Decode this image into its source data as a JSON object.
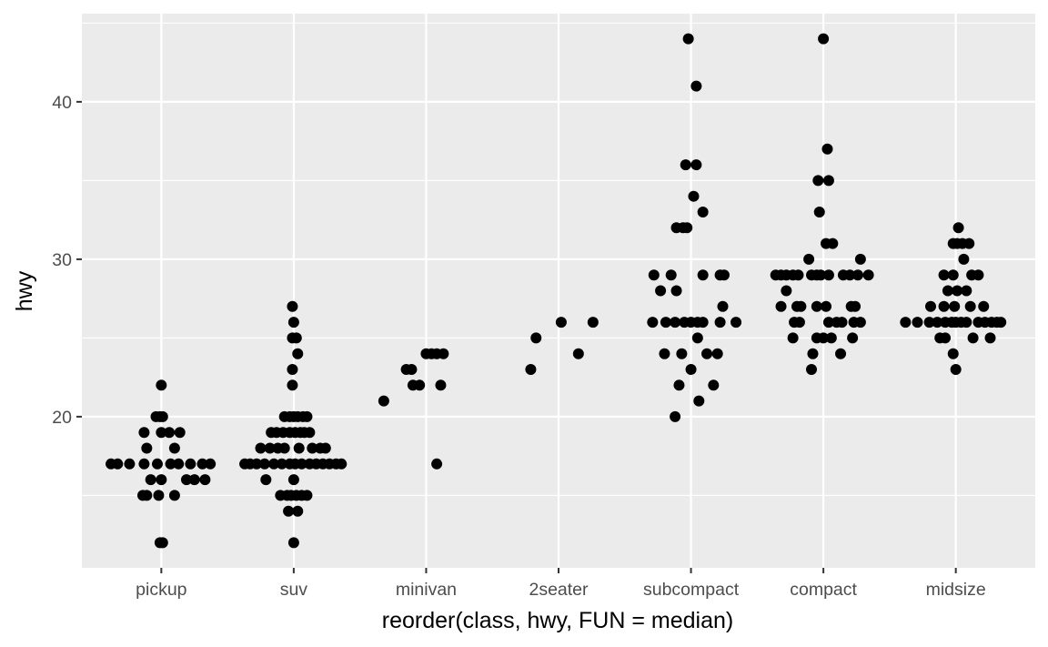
{
  "chart_data": {
    "type": "scatter",
    "subtype": "jittered-strip",
    "title": "",
    "xlabel": "reorder(class, hwy, FUN = median)",
    "ylabel": "hwy",
    "categories": [
      "pickup",
      "suv",
      "minivan",
      "2seater",
      "subcompact",
      "compact",
      "midsize"
    ],
    "ylim": [
      10.4,
      45.6
    ],
    "yticks": [
      20,
      30,
      40
    ],
    "grid": true,
    "legend": "none",
    "colors": {
      "panel": "#ebebeb",
      "grid": "#ffffff",
      "point": "#000000",
      "text": "#4d4d4d"
    },
    "points": [
      {
        "category": "pickup",
        "offset": -0.38,
        "y": 17
      },
      {
        "category": "pickup",
        "offset": -0.33,
        "y": 17
      },
      {
        "category": "pickup",
        "offset": -0.24,
        "y": 17
      },
      {
        "category": "pickup",
        "offset": -0.13,
        "y": 17
      },
      {
        "category": "pickup",
        "offset": -0.03,
        "y": 17
      },
      {
        "category": "pickup",
        "offset": 0.07,
        "y": 17
      },
      {
        "category": "pickup",
        "offset": 0.13,
        "y": 17
      },
      {
        "category": "pickup",
        "offset": 0.22,
        "y": 17
      },
      {
        "category": "pickup",
        "offset": 0.31,
        "y": 17
      },
      {
        "category": "pickup",
        "offset": 0.37,
        "y": 17
      },
      {
        "category": "pickup",
        "offset": -0.11,
        "y": 18
      },
      {
        "category": "pickup",
        "offset": 0.1,
        "y": 18
      },
      {
        "category": "pickup",
        "offset": -0.13,
        "y": 19
      },
      {
        "category": "pickup",
        "offset": 0.0,
        "y": 19
      },
      {
        "category": "pickup",
        "offset": 0.06,
        "y": 19
      },
      {
        "category": "pickup",
        "offset": 0.14,
        "y": 19
      },
      {
        "category": "pickup",
        "offset": -0.04,
        "y": 20
      },
      {
        "category": "pickup",
        "offset": -0.01,
        "y": 20
      },
      {
        "category": "pickup",
        "offset": 0.01,
        "y": 20
      },
      {
        "category": "pickup",
        "offset": 0.0,
        "y": 22
      },
      {
        "category": "pickup",
        "offset": -0.08,
        "y": 16
      },
      {
        "category": "pickup",
        "offset": 0.0,
        "y": 16
      },
      {
        "category": "pickup",
        "offset": 0.19,
        "y": 16
      },
      {
        "category": "pickup",
        "offset": 0.25,
        "y": 16
      },
      {
        "category": "pickup",
        "offset": 0.33,
        "y": 16
      },
      {
        "category": "pickup",
        "offset": -0.14,
        "y": 15
      },
      {
        "category": "pickup",
        "offset": -0.11,
        "y": 15
      },
      {
        "category": "pickup",
        "offset": -0.02,
        "y": 15
      },
      {
        "category": "pickup",
        "offset": 0.1,
        "y": 15
      },
      {
        "category": "pickup",
        "offset": -0.01,
        "y": 12
      },
      {
        "category": "pickup",
        "offset": 0.01,
        "y": 12
      },
      {
        "category": "suv",
        "offset": -0.37,
        "y": 17
      },
      {
        "category": "suv",
        "offset": -0.33,
        "y": 17
      },
      {
        "category": "suv",
        "offset": -0.28,
        "y": 17
      },
      {
        "category": "suv",
        "offset": -0.22,
        "y": 17
      },
      {
        "category": "suv",
        "offset": -0.15,
        "y": 17
      },
      {
        "category": "suv",
        "offset": -0.09,
        "y": 17
      },
      {
        "category": "suv",
        "offset": -0.03,
        "y": 17
      },
      {
        "category": "suv",
        "offset": 0.01,
        "y": 17
      },
      {
        "category": "suv",
        "offset": 0.06,
        "y": 17
      },
      {
        "category": "suv",
        "offset": 0.12,
        "y": 17
      },
      {
        "category": "suv",
        "offset": 0.17,
        "y": 17
      },
      {
        "category": "suv",
        "offset": 0.22,
        "y": 17
      },
      {
        "category": "suv",
        "offset": 0.27,
        "y": 17
      },
      {
        "category": "suv",
        "offset": 0.32,
        "y": 17
      },
      {
        "category": "suv",
        "offset": 0.36,
        "y": 17
      },
      {
        "category": "suv",
        "offset": -0.25,
        "y": 18
      },
      {
        "category": "suv",
        "offset": -0.18,
        "y": 18
      },
      {
        "category": "suv",
        "offset": -0.12,
        "y": 18
      },
      {
        "category": "suv",
        "offset": -0.07,
        "y": 18
      },
      {
        "category": "suv",
        "offset": 0.04,
        "y": 18
      },
      {
        "category": "suv",
        "offset": 0.14,
        "y": 18
      },
      {
        "category": "suv",
        "offset": 0.2,
        "y": 18
      },
      {
        "category": "suv",
        "offset": 0.24,
        "y": 18
      },
      {
        "category": "suv",
        "offset": -0.17,
        "y": 19
      },
      {
        "category": "suv",
        "offset": -0.13,
        "y": 19
      },
      {
        "category": "suv",
        "offset": -0.08,
        "y": 19
      },
      {
        "category": "suv",
        "offset": -0.03,
        "y": 19
      },
      {
        "category": "suv",
        "offset": 0.01,
        "y": 19
      },
      {
        "category": "suv",
        "offset": 0.05,
        "y": 19
      },
      {
        "category": "suv",
        "offset": 0.08,
        "y": 19
      },
      {
        "category": "suv",
        "offset": 0.12,
        "y": 19
      },
      {
        "category": "suv",
        "offset": -0.07,
        "y": 20
      },
      {
        "category": "suv",
        "offset": -0.03,
        "y": 20
      },
      {
        "category": "suv",
        "offset": 0.0,
        "y": 20
      },
      {
        "category": "suv",
        "offset": 0.03,
        "y": 20
      },
      {
        "category": "suv",
        "offset": 0.07,
        "y": 20
      },
      {
        "category": "suv",
        "offset": 0.1,
        "y": 20
      },
      {
        "category": "suv",
        "offset": -0.01,
        "y": 22
      },
      {
        "category": "suv",
        "offset": -0.01,
        "y": 23
      },
      {
        "category": "suv",
        "offset": 0.03,
        "y": 24
      },
      {
        "category": "suv",
        "offset": -0.01,
        "y": 25
      },
      {
        "category": "suv",
        "offset": 0.02,
        "y": 25
      },
      {
        "category": "suv",
        "offset": 0.0,
        "y": 26
      },
      {
        "category": "suv",
        "offset": -0.01,
        "y": 27
      },
      {
        "category": "suv",
        "offset": -0.21,
        "y": 16
      },
      {
        "category": "suv",
        "offset": 0.0,
        "y": 16
      },
      {
        "category": "suv",
        "offset": -0.1,
        "y": 15
      },
      {
        "category": "suv",
        "offset": -0.05,
        "y": 15
      },
      {
        "category": "suv",
        "offset": -0.02,
        "y": 15
      },
      {
        "category": "suv",
        "offset": 0.02,
        "y": 15
      },
      {
        "category": "suv",
        "offset": 0.06,
        "y": 15
      },
      {
        "category": "suv",
        "offset": 0.1,
        "y": 15
      },
      {
        "category": "suv",
        "offset": -0.04,
        "y": 14
      },
      {
        "category": "suv",
        "offset": 0.03,
        "y": 14
      },
      {
        "category": "suv",
        "offset": 0.0,
        "y": 12
      },
      {
        "category": "minivan",
        "offset": -0.32,
        "y": 21
      },
      {
        "category": "minivan",
        "offset": -0.15,
        "y": 23
      },
      {
        "category": "minivan",
        "offset": -0.11,
        "y": 23
      },
      {
        "category": "minivan",
        "offset": -0.1,
        "y": 22
      },
      {
        "category": "minivan",
        "offset": -0.05,
        "y": 22
      },
      {
        "category": "minivan",
        "offset": 0.0,
        "y": 24
      },
      {
        "category": "minivan",
        "offset": 0.04,
        "y": 24
      },
      {
        "category": "minivan",
        "offset": 0.08,
        "y": 24
      },
      {
        "category": "minivan",
        "offset": 0.13,
        "y": 24
      },
      {
        "category": "minivan",
        "offset": 0.11,
        "y": 22
      },
      {
        "category": "minivan",
        "offset": 0.08,
        "y": 17
      },
      {
        "category": "2seater",
        "offset": -0.21,
        "y": 23
      },
      {
        "category": "2seater",
        "offset": -0.17,
        "y": 25
      },
      {
        "category": "2seater",
        "offset": 0.02,
        "y": 26
      },
      {
        "category": "2seater",
        "offset": 0.15,
        "y": 24
      },
      {
        "category": "2seater",
        "offset": 0.26,
        "y": 26
      },
      {
        "category": "subcompact",
        "offset": -0.29,
        "y": 26
      },
      {
        "category": "subcompact",
        "offset": -0.19,
        "y": 26
      },
      {
        "category": "subcompact",
        "offset": -0.12,
        "y": 26
      },
      {
        "category": "subcompact",
        "offset": -0.05,
        "y": 26
      },
      {
        "category": "subcompact",
        "offset": 0.0,
        "y": 26
      },
      {
        "category": "subcompact",
        "offset": 0.05,
        "y": 26
      },
      {
        "category": "subcompact",
        "offset": 0.09,
        "y": 26
      },
      {
        "category": "subcompact",
        "offset": 0.22,
        "y": 26
      },
      {
        "category": "subcompact",
        "offset": 0.34,
        "y": 26
      },
      {
        "category": "subcompact",
        "offset": -0.28,
        "y": 29
      },
      {
        "category": "subcompact",
        "offset": -0.15,
        "y": 29
      },
      {
        "category": "subcompact",
        "offset": 0.09,
        "y": 29
      },
      {
        "category": "subcompact",
        "offset": 0.22,
        "y": 29
      },
      {
        "category": "subcompact",
        "offset": 0.25,
        "y": 29
      },
      {
        "category": "subcompact",
        "offset": -0.23,
        "y": 28
      },
      {
        "category": "subcompact",
        "offset": -0.11,
        "y": 28
      },
      {
        "category": "subcompact",
        "offset": -0.2,
        "y": 24
      },
      {
        "category": "subcompact",
        "offset": -0.07,
        "y": 24
      },
      {
        "category": "subcompact",
        "offset": 0.12,
        "y": 24
      },
      {
        "category": "subcompact",
        "offset": 0.2,
        "y": 24
      },
      {
        "category": "subcompact",
        "offset": -0.11,
        "y": 32
      },
      {
        "category": "subcompact",
        "offset": -0.06,
        "y": 32
      },
      {
        "category": "subcompact",
        "offset": -0.03,
        "y": 32
      },
      {
        "category": "subcompact",
        "offset": -0.04,
        "y": 36
      },
      {
        "category": "subcompact",
        "offset": 0.04,
        "y": 36
      },
      {
        "category": "subcompact",
        "offset": 0.02,
        "y": 34
      },
      {
        "category": "subcompact",
        "offset": 0.09,
        "y": 33
      },
      {
        "category": "subcompact",
        "offset": 0.24,
        "y": 27
      },
      {
        "category": "subcompact",
        "offset": 0.05,
        "y": 25
      },
      {
        "category": "subcompact",
        "offset": 0.0,
        "y": 23
      },
      {
        "category": "subcompact",
        "offset": -0.09,
        "y": 22
      },
      {
        "category": "subcompact",
        "offset": 0.17,
        "y": 22
      },
      {
        "category": "subcompact",
        "offset": 0.06,
        "y": 21
      },
      {
        "category": "subcompact",
        "offset": -0.12,
        "y": 20
      },
      {
        "category": "subcompact",
        "offset": -0.02,
        "y": 44
      },
      {
        "category": "subcompact",
        "offset": 0.04,
        "y": 41
      },
      {
        "category": "compact",
        "offset": -0.36,
        "y": 29
      },
      {
        "category": "compact",
        "offset": -0.32,
        "y": 29
      },
      {
        "category": "compact",
        "offset": -0.28,
        "y": 29
      },
      {
        "category": "compact",
        "offset": -0.23,
        "y": 29
      },
      {
        "category": "compact",
        "offset": -0.19,
        "y": 29
      },
      {
        "category": "compact",
        "offset": -0.09,
        "y": 29
      },
      {
        "category": "compact",
        "offset": -0.05,
        "y": 29
      },
      {
        "category": "compact",
        "offset": -0.02,
        "y": 29
      },
      {
        "category": "compact",
        "offset": 0.04,
        "y": 29
      },
      {
        "category": "compact",
        "offset": 0.15,
        "y": 29
      },
      {
        "category": "compact",
        "offset": 0.2,
        "y": 29
      },
      {
        "category": "compact",
        "offset": 0.26,
        "y": 29
      },
      {
        "category": "compact",
        "offset": 0.34,
        "y": 29
      },
      {
        "category": "compact",
        "offset": -0.28,
        "y": 28
      },
      {
        "category": "compact",
        "offset": -0.11,
        "y": 30
      },
      {
        "category": "compact",
        "offset": 0.28,
        "y": 30
      },
      {
        "category": "compact",
        "offset": 0.02,
        "y": 31
      },
      {
        "category": "compact",
        "offset": 0.07,
        "y": 31
      },
      {
        "category": "compact",
        "offset": -0.03,
        "y": 33
      },
      {
        "category": "compact",
        "offset": -0.04,
        "y": 35
      },
      {
        "category": "compact",
        "offset": 0.04,
        "y": 35
      },
      {
        "category": "compact",
        "offset": 0.03,
        "y": 37
      },
      {
        "category": "compact",
        "offset": 0.0,
        "y": 44
      },
      {
        "category": "compact",
        "offset": -0.32,
        "y": 27
      },
      {
        "category": "compact",
        "offset": -0.2,
        "y": 27
      },
      {
        "category": "compact",
        "offset": -0.17,
        "y": 27
      },
      {
        "category": "compact",
        "offset": -0.05,
        "y": 27
      },
      {
        "category": "compact",
        "offset": 0.02,
        "y": 27
      },
      {
        "category": "compact",
        "offset": 0.21,
        "y": 27
      },
      {
        "category": "compact",
        "offset": 0.24,
        "y": 27
      },
      {
        "category": "compact",
        "offset": -0.22,
        "y": 26
      },
      {
        "category": "compact",
        "offset": -0.18,
        "y": 26
      },
      {
        "category": "compact",
        "offset": 0.04,
        "y": 26
      },
      {
        "category": "compact",
        "offset": 0.1,
        "y": 26
      },
      {
        "category": "compact",
        "offset": 0.14,
        "y": 26
      },
      {
        "category": "compact",
        "offset": 0.23,
        "y": 26
      },
      {
        "category": "compact",
        "offset": 0.28,
        "y": 26
      },
      {
        "category": "compact",
        "offset": -0.23,
        "y": 25
      },
      {
        "category": "compact",
        "offset": -0.05,
        "y": 25
      },
      {
        "category": "compact",
        "offset": 0.0,
        "y": 25
      },
      {
        "category": "compact",
        "offset": 0.06,
        "y": 25
      },
      {
        "category": "compact",
        "offset": 0.22,
        "y": 25
      },
      {
        "category": "compact",
        "offset": -0.08,
        "y": 24
      },
      {
        "category": "compact",
        "offset": 0.13,
        "y": 24
      },
      {
        "category": "compact",
        "offset": -0.09,
        "y": 23
      },
      {
        "category": "midsize",
        "offset": -0.38,
        "y": 26
      },
      {
        "category": "midsize",
        "offset": -0.29,
        "y": 26
      },
      {
        "category": "midsize",
        "offset": -0.2,
        "y": 26
      },
      {
        "category": "midsize",
        "offset": -0.14,
        "y": 26
      },
      {
        "category": "midsize",
        "offset": -0.08,
        "y": 26
      },
      {
        "category": "midsize",
        "offset": -0.03,
        "y": 26
      },
      {
        "category": "midsize",
        "offset": 0.0,
        "y": 26
      },
      {
        "category": "midsize",
        "offset": 0.04,
        "y": 26
      },
      {
        "category": "midsize",
        "offset": 0.08,
        "y": 26
      },
      {
        "category": "midsize",
        "offset": 0.17,
        "y": 26
      },
      {
        "category": "midsize",
        "offset": 0.22,
        "y": 26
      },
      {
        "category": "midsize",
        "offset": 0.27,
        "y": 26
      },
      {
        "category": "midsize",
        "offset": 0.31,
        "y": 26
      },
      {
        "category": "midsize",
        "offset": 0.34,
        "y": 26
      },
      {
        "category": "midsize",
        "offset": -0.19,
        "y": 27
      },
      {
        "category": "midsize",
        "offset": -0.09,
        "y": 27
      },
      {
        "category": "midsize",
        "offset": -0.01,
        "y": 27
      },
      {
        "category": "midsize",
        "offset": 0.11,
        "y": 27
      },
      {
        "category": "midsize",
        "offset": 0.21,
        "y": 27
      },
      {
        "category": "midsize",
        "offset": -0.06,
        "y": 28
      },
      {
        "category": "midsize",
        "offset": 0.01,
        "y": 28
      },
      {
        "category": "midsize",
        "offset": 0.08,
        "y": 28
      },
      {
        "category": "midsize",
        "offset": -0.09,
        "y": 29
      },
      {
        "category": "midsize",
        "offset": -0.02,
        "y": 29
      },
      {
        "category": "midsize",
        "offset": 0.12,
        "y": 29
      },
      {
        "category": "midsize",
        "offset": 0.17,
        "y": 29
      },
      {
        "category": "midsize",
        "offset": 0.06,
        "y": 30
      },
      {
        "category": "midsize",
        "offset": -0.02,
        "y": 31
      },
      {
        "category": "midsize",
        "offset": 0.01,
        "y": 31
      },
      {
        "category": "midsize",
        "offset": 0.05,
        "y": 31
      },
      {
        "category": "midsize",
        "offset": 0.1,
        "y": 31
      },
      {
        "category": "midsize",
        "offset": 0.02,
        "y": 32
      },
      {
        "category": "midsize",
        "offset": -0.12,
        "y": 25
      },
      {
        "category": "midsize",
        "offset": -0.08,
        "y": 25
      },
      {
        "category": "midsize",
        "offset": 0.13,
        "y": 25
      },
      {
        "category": "midsize",
        "offset": 0.26,
        "y": 25
      },
      {
        "category": "midsize",
        "offset": -0.02,
        "y": 24
      },
      {
        "category": "midsize",
        "offset": 0.0,
        "y": 23
      }
    ]
  }
}
